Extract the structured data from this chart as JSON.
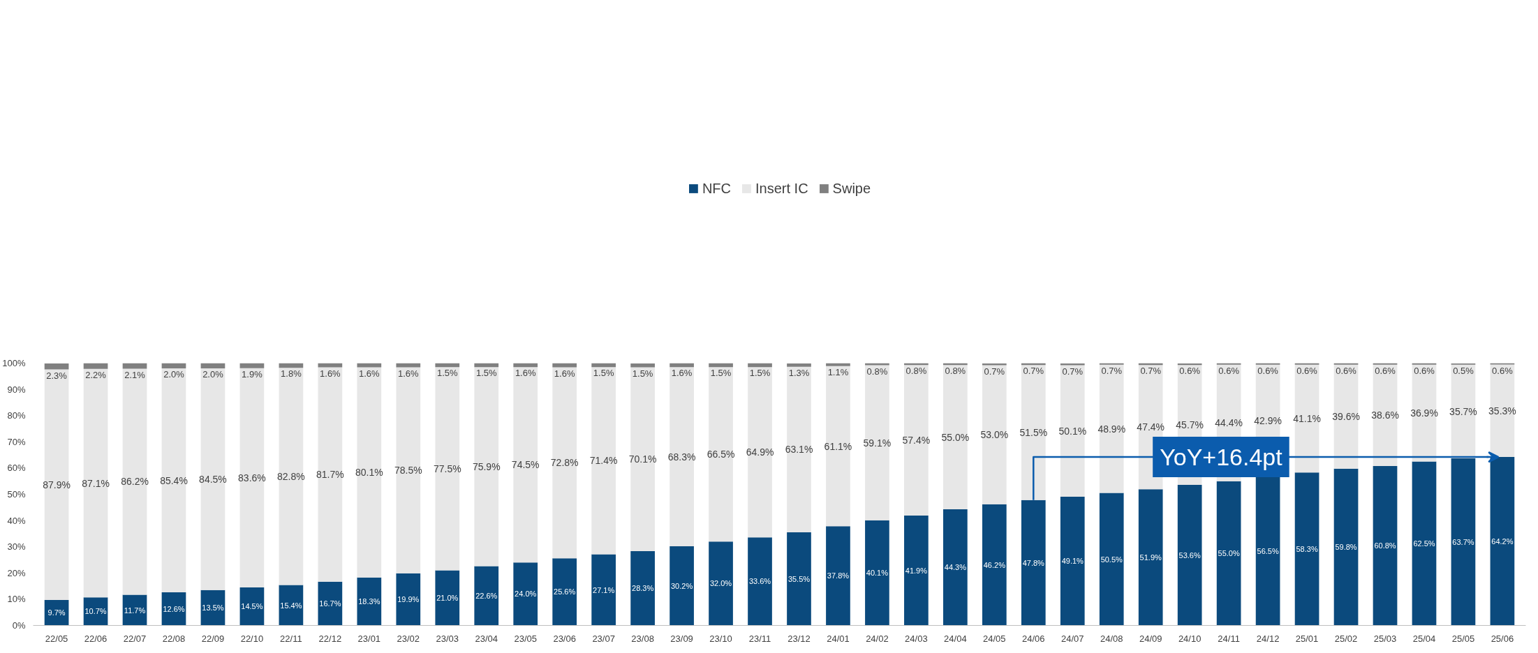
{
  "chart_data": {
    "type": "bar",
    "stacked": true,
    "categories": [
      "22/05",
      "22/06",
      "22/07",
      "22/08",
      "22/09",
      "22/10",
      "22/11",
      "22/12",
      "23/01",
      "23/02",
      "23/03",
      "23/04",
      "23/05",
      "23/06",
      "23/07",
      "23/08",
      "23/09",
      "23/10",
      "23/11",
      "23/12",
      "24/01",
      "24/02",
      "24/03",
      "24/04",
      "24/05",
      "24/06",
      "24/07",
      "24/08",
      "24/09",
      "24/10",
      "24/11",
      "24/12",
      "25/01",
      "25/02",
      "25/03",
      "25/04",
      "25/05",
      "25/06"
    ],
    "series": [
      {
        "name": "NFC",
        "color": "#0b4a7d",
        "values": [
          9.7,
          10.7,
          11.7,
          12.6,
          13.5,
          14.5,
          15.4,
          16.7,
          18.3,
          19.9,
          21.0,
          22.6,
          24.0,
          25.6,
          27.1,
          28.3,
          30.2,
          32.0,
          33.6,
          35.5,
          37.8,
          40.1,
          41.9,
          44.3,
          46.2,
          47.8,
          49.1,
          50.5,
          51.9,
          53.6,
          55.0,
          56.5,
          58.3,
          59.8,
          60.8,
          62.5,
          63.7,
          64.2
        ],
        "value_labels": [
          "9.7%",
          "10.7%",
          "11.7%",
          "12.6%",
          "13.5%",
          "14.5%",
          "15.4%",
          "16.7%",
          "18.3%",
          "19.9%",
          "21.0%",
          "22.6%",
          "24.0%",
          "25.6%",
          "27.1%",
          "28.3%",
          "30.2%",
          "32.0%",
          "33.6%",
          "35.5%",
          "37.8%",
          "40.1%",
          "41.9%",
          "44.3%",
          "46.2%",
          "47.8%",
          "49.1%",
          "50.5%",
          "51.9%",
          "53.6%",
          "55.0%",
          "56.5%",
          "58.3%",
          "59.8%",
          "60.8%",
          "62.5%",
          "63.7%",
          "64.2%"
        ]
      },
      {
        "name": "Insert IC",
        "color": "#e7e7e7",
        "values": [
          87.9,
          87.1,
          86.2,
          85.4,
          84.5,
          83.6,
          82.8,
          81.7,
          80.1,
          78.5,
          77.5,
          75.9,
          74.5,
          72.8,
          71.4,
          70.1,
          68.3,
          66.5,
          64.9,
          63.1,
          61.1,
          59.1,
          57.4,
          55.0,
          53.0,
          51.5,
          50.1,
          48.9,
          47.4,
          45.7,
          44.4,
          42.9,
          41.1,
          39.6,
          38.6,
          36.9,
          35.7,
          35.3
        ],
        "value_labels": [
          "87.9%",
          "87.1%",
          "86.2%",
          "85.4%",
          "84.5%",
          "83.6%",
          "82.8%",
          "81.7%",
          "80.1%",
          "78.5%",
          "77.5%",
          "75.9%",
          "74.5%",
          "72.8%",
          "71.4%",
          "70.1%",
          "68.3%",
          "66.5%",
          "64.9%",
          "63.1%",
          "61.1%",
          "59.1%",
          "57.4%",
          "55.0%",
          "53.0%",
          "51.5%",
          "50.1%",
          "48.9%",
          "47.4%",
          "45.7%",
          "44.4%",
          "42.9%",
          "41.1%",
          "39.6%",
          "38.6%",
          "36.9%",
          "35.7%",
          "35.3%"
        ]
      },
      {
        "name": "Swipe",
        "color": "#808080",
        "values": [
          2.3,
          2.2,
          2.1,
          2.0,
          2.0,
          1.9,
          1.8,
          1.6,
          1.6,
          1.6,
          1.5,
          1.5,
          1.6,
          1.6,
          1.5,
          1.5,
          1.6,
          1.5,
          1.5,
          1.3,
          1.1,
          0.8,
          0.8,
          0.8,
          0.7,
          0.7,
          0.7,
          0.7,
          0.7,
          0.6,
          0.6,
          0.6,
          0.6,
          0.6,
          0.6,
          0.6,
          0.5,
          0.6
        ],
        "value_labels": [
          "2.3%",
          "2.2%",
          "2.1%",
          "2.0%",
          "2.0%",
          "1.9%",
          "1.8%",
          "1.6%",
          "1.6%",
          "1.6%",
          "1.5%",
          "1.5%",
          "1.6%",
          "1.6%",
          "1.5%",
          "1.5%",
          "1.6%",
          "1.5%",
          "1.5%",
          "1.3%",
          "1.1%",
          "0.8%",
          "0.8%",
          "0.8%",
          "0.7%",
          "0.7%",
          "0.7%",
          "0.7%",
          "0.7%",
          "0.6%",
          "0.6%",
          "0.6%",
          "0.6%",
          "0.6%",
          "0.6%",
          "0.6%",
          "0.5%",
          "0.6%"
        ]
      }
    ],
    "ylim": [
      0,
      100
    ],
    "yticks": [
      {
        "value": 0,
        "label": "0%"
      },
      {
        "value": 10,
        "label": "10%"
      },
      {
        "value": 20,
        "label": "20%"
      },
      {
        "value": 30,
        "label": "30%"
      },
      {
        "value": 40,
        "label": "40%"
      },
      {
        "value": 50,
        "label": "50%"
      },
      {
        "value": 60,
        "label": "60%"
      },
      {
        "value": 70,
        "label": "70%"
      },
      {
        "value": 80,
        "label": "80%"
      },
      {
        "value": 90,
        "label": "90%"
      },
      {
        "value": 100,
        "label": "100%"
      }
    ],
    "annotations": [
      "YoY+16.4pt"
    ],
    "legend": "top",
    "grid": false
  }
}
